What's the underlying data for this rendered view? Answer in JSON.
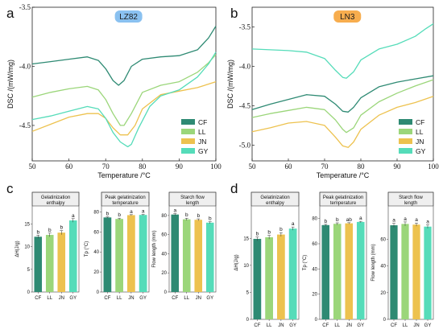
{
  "colors": {
    "CF": "#2e8a73",
    "LL": "#9bd67a",
    "JN": "#edc24f",
    "GY": "#55dcb9"
  },
  "chart_data": [
    {
      "panel": "a",
      "type": "line",
      "badge": "LZ82",
      "badge_color": "#8ac1f0",
      "xlabel": "Temperature /°C",
      "ylabel": "DSC /(mW/mg)",
      "xlim": [
        50,
        100
      ],
      "ylim": [
        -4.8,
        -3.5
      ],
      "xticks": [
        50,
        60,
        70,
        80,
        90,
        100
      ],
      "yticks": [
        -4.5,
        -4.0,
        -3.5
      ],
      "ytick_labels": [
        "-4.5",
        "-4.0",
        "-3.5"
      ],
      "legend": "bottom-right",
      "grid": false,
      "series": [
        {
          "name": "CF",
          "points": [
            [
              50,
              -3.98
            ],
            [
              55,
              -3.96
            ],
            [
              60,
              -3.94
            ],
            [
              65,
              -3.92
            ],
            [
              68,
              -3.95
            ],
            [
              70,
              -4.02
            ],
            [
              72,
              -4.12
            ],
            [
              73.5,
              -4.16
            ],
            [
              75,
              -4.12
            ],
            [
              77,
              -4.0
            ],
            [
              80,
              -3.94
            ],
            [
              85,
              -3.92
            ],
            [
              90,
              -3.91
            ],
            [
              95,
              -3.86
            ],
            [
              98,
              -3.76
            ],
            [
              100,
              -3.66
            ]
          ]
        },
        {
          "name": "LL",
          "points": [
            [
              50,
              -4.26
            ],
            [
              55,
              -4.22
            ],
            [
              60,
              -4.19
            ],
            [
              65,
              -4.17
            ],
            [
              68,
              -4.2
            ],
            [
              70,
              -4.28
            ],
            [
              72,
              -4.4
            ],
            [
              74,
              -4.5
            ],
            [
              75,
              -4.5
            ],
            [
              77,
              -4.4
            ],
            [
              80,
              -4.22
            ],
            [
              85,
              -4.16
            ],
            [
              90,
              -4.13
            ],
            [
              95,
              -4.05
            ],
            [
              98,
              -3.97
            ],
            [
              100,
              -3.9
            ]
          ]
        },
        {
          "name": "JN",
          "points": [
            [
              50,
              -4.55
            ],
            [
              55,
              -4.49
            ],
            [
              60,
              -4.43
            ],
            [
              65,
              -4.4
            ],
            [
              68,
              -4.4
            ],
            [
              70,
              -4.44
            ],
            [
              72,
              -4.52
            ],
            [
              74,
              -4.58
            ],
            [
              76,
              -4.58
            ],
            [
              78,
              -4.5
            ],
            [
              80,
              -4.36
            ],
            [
              85,
              -4.24
            ],
            [
              90,
              -4.21
            ],
            [
              95,
              -4.18
            ],
            [
              100,
              -4.13
            ]
          ]
        },
        {
          "name": "GY",
          "points": [
            [
              50,
              -4.45
            ],
            [
              55,
              -4.42
            ],
            [
              60,
              -4.38
            ],
            [
              65,
              -4.34
            ],
            [
              68,
              -4.36
            ],
            [
              70,
              -4.44
            ],
            [
              72,
              -4.56
            ],
            [
              74,
              -4.64
            ],
            [
              76,
              -4.68
            ],
            [
              77,
              -4.66
            ],
            [
              79,
              -4.52
            ],
            [
              82,
              -4.34
            ],
            [
              85,
              -4.25
            ],
            [
              90,
              -4.2
            ],
            [
              95,
              -4.09
            ],
            [
              98,
              -3.98
            ],
            [
              100,
              -3.88
            ]
          ]
        }
      ]
    },
    {
      "panel": "b",
      "type": "line",
      "badge": "LN3",
      "badge_color": "#f7ad4e",
      "xlabel": "Temperature /°C",
      "ylabel": "DSC /(mW/mg)",
      "xlim": [
        50,
        100
      ],
      "ylim": [
        -5.2,
        -3.25
      ],
      "xticks": [
        50,
        60,
        70,
        80,
        90,
        100
      ],
      "yticks": [
        -5.0,
        -4.5,
        -4.0,
        -3.5
      ],
      "ytick_labels": [
        "-5.0",
        "-4.5",
        "-4.0",
        "-3.5"
      ],
      "legend": "bottom-right",
      "grid": false,
      "series": [
        {
          "name": "CF",
          "points": [
            [
              50,
              -4.55
            ],
            [
              55,
              -4.48
            ],
            [
              60,
              -4.42
            ],
            [
              65,
              -4.36
            ],
            [
              70,
              -4.38
            ],
            [
              73,
              -4.48
            ],
            [
              75,
              -4.57
            ],
            [
              76.5,
              -4.58
            ],
            [
              78,
              -4.52
            ],
            [
              80,
              -4.4
            ],
            [
              85,
              -4.26
            ],
            [
              90,
              -4.2
            ],
            [
              95,
              -4.16
            ],
            [
              100,
              -4.12
            ]
          ]
        },
        {
          "name": "LL",
          "points": [
            [
              50,
              -4.65
            ],
            [
              55,
              -4.6
            ],
            [
              60,
              -4.56
            ],
            [
              65,
              -4.52
            ],
            [
              70,
              -4.55
            ],
            [
              73,
              -4.68
            ],
            [
              75,
              -4.8
            ],
            [
              76,
              -4.84
            ],
            [
              78,
              -4.78
            ],
            [
              80,
              -4.62
            ],
            [
              85,
              -4.45
            ],
            [
              90,
              -4.34
            ],
            [
              95,
              -4.25
            ],
            [
              100,
              -4.17
            ]
          ]
        },
        {
          "name": "JN",
          "points": [
            [
              50,
              -4.83
            ],
            [
              55,
              -4.78
            ],
            [
              60,
              -4.72
            ],
            [
              65,
              -4.7
            ],
            [
              70,
              -4.75
            ],
            [
              73,
              -4.9
            ],
            [
              75,
              -5.01
            ],
            [
              76.5,
              -5.03
            ],
            [
              78,
              -4.96
            ],
            [
              80,
              -4.8
            ],
            [
              85,
              -4.62
            ],
            [
              90,
              -4.52
            ],
            [
              95,
              -4.46
            ],
            [
              100,
              -4.38
            ]
          ]
        },
        {
          "name": "GY",
          "points": [
            [
              50,
              -3.78
            ],
            [
              55,
              -3.79
            ],
            [
              60,
              -3.8
            ],
            [
              65,
              -3.82
            ],
            [
              70,
              -3.9
            ],
            [
              73,
              -4.05
            ],
            [
              75,
              -4.14
            ],
            [
              76,
              -4.15
            ],
            [
              78,
              -4.07
            ],
            [
              80,
              -3.92
            ],
            [
              85,
              -3.78
            ],
            [
              90,
              -3.72
            ],
            [
              95,
              -3.62
            ],
            [
              98,
              -3.52
            ],
            [
              100,
              -3.46
            ]
          ]
        }
      ]
    },
    {
      "panel": "c",
      "type": "bar",
      "subplots": [
        {
          "title": [
            "Gelatinization",
            "enthalpy"
          ],
          "ylabel": "ΔH(J/g)",
          "ylim": [
            0,
            19
          ],
          "yticks": [
            0,
            5,
            10,
            15
          ],
          "categories": [
            "CF",
            "LL",
            "JN",
            "GY"
          ],
          "values": [
            12.2,
            12.6,
            13.1,
            15.8
          ],
          "errors": [
            0.35,
            0.4,
            0.45,
            0.4
          ],
          "letters": [
            "b",
            "b",
            "b",
            "a"
          ]
        },
        {
          "title": [
            "Peak gelatinization",
            "temperature"
          ],
          "ylabel": "Tp (°C)",
          "ylim": [
            0,
            86
          ],
          "yticks": [
            0,
            20,
            40,
            60,
            80
          ],
          "categories": [
            "CF",
            "LL",
            "JN",
            "GY"
          ],
          "values": [
            74.5,
            73.0,
            76.8,
            77.0
          ],
          "errors": [
            0.6,
            0.8,
            0.5,
            0.5
          ],
          "letters": [
            "b",
            "b",
            "a",
            "a"
          ]
        },
        {
          "title": [
            "Starch flow",
            "length"
          ],
          "ylabel": "Flow length (mm)",
          "ylim": [
            0,
            90
          ],
          "yticks": [
            0,
            20,
            40,
            60,
            80
          ],
          "categories": [
            "CF",
            "LL",
            "JN",
            "GY"
          ],
          "values": [
            81.0,
            76.0,
            75.5,
            72.5
          ],
          "errors": [
            1.0,
            1.2,
            1.0,
            1.0
          ],
          "letters": [
            "a",
            "b",
            "b",
            "b"
          ]
        }
      ]
    },
    {
      "panel": "d",
      "type": "bar",
      "subplots": [
        {
          "title": [
            "Gelatinization",
            "enthalpy"
          ],
          "ylabel": "ΔH(J/g)",
          "ylim": [
            0,
            21
          ],
          "yticks": [
            0,
            5,
            10,
            15
          ],
          "categories": [
            "CF",
            "LL",
            "JN",
            "GY"
          ],
          "values": [
            14.9,
            15.2,
            15.7,
            16.8
          ],
          "errors": [
            0.35,
            0.35,
            0.35,
            0.3
          ],
          "letters": [
            "b",
            "b",
            "b",
            "a"
          ]
        },
        {
          "title": [
            "Peak gelatinization",
            "temperature"
          ],
          "ylabel": "Tp (°C)",
          "ylim": [
            0,
            90
          ],
          "yticks": [
            0,
            20,
            40,
            60,
            80
          ],
          "categories": [
            "CF",
            "LL",
            "JN",
            "GY"
          ],
          "values": [
            74.8,
            75.8,
            76.2,
            77.3
          ],
          "errors": [
            0.6,
            0.8,
            0.5,
            0.5
          ],
          "letters": [
            "b",
            "b",
            "ab",
            "a"
          ]
        },
        {
          "title": [
            "Starch flow",
            "length"
          ],
          "ylabel": "Flow length (mm)",
          "ylim": [
            0,
            85
          ],
          "yticks": [
            0,
            20,
            40,
            60
          ],
          "categories": [
            "CF",
            "LL",
            "JN",
            "GY"
          ],
          "values": [
            70.5,
            71.5,
            71.0,
            69.5
          ],
          "errors": [
            1.5,
            1.5,
            1.2,
            1.3
          ],
          "letters": [
            "a",
            "a",
            "a",
            "a"
          ]
        }
      ]
    }
  ]
}
